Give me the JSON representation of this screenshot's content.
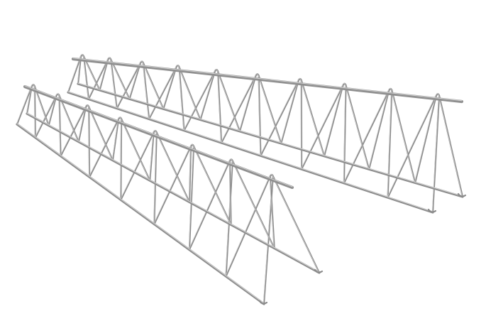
{
  "image": {
    "subject": "steel-lattice-girder",
    "count": 2,
    "background_color": "#ffffff",
    "wire_color": "#8d8d8d",
    "highlight_color": "#d4d4d4"
  }
}
